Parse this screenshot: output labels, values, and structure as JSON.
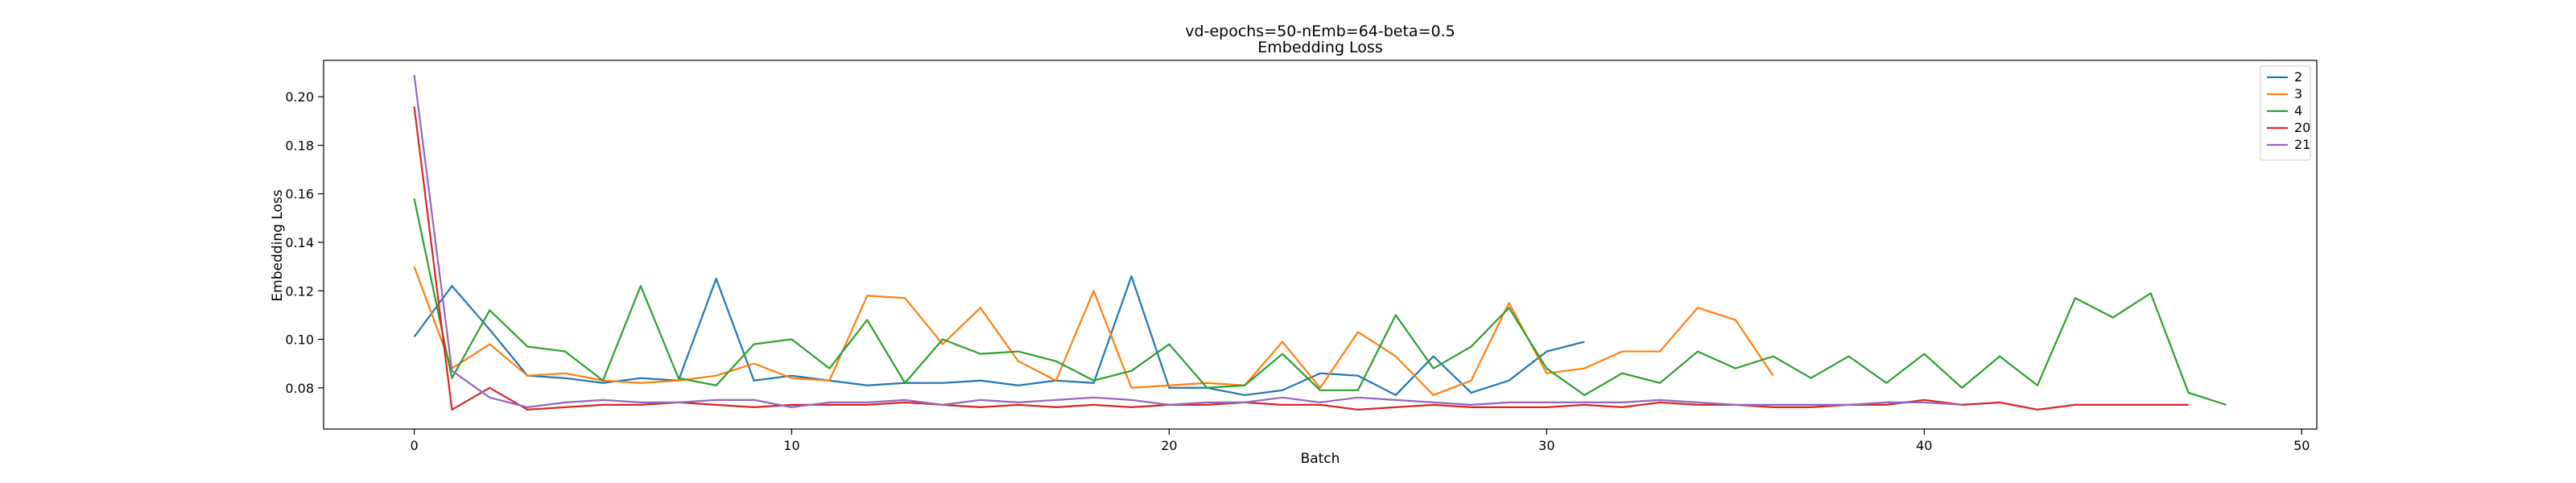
{
  "chart_data": {
    "type": "line",
    "title": "vd-epochs=50-nEmb=64-beta=0.5",
    "subtitle": "Embedding Loss",
    "xlabel": "Batch",
    "ylabel": "Embedding Loss",
    "xlim": [
      -2.4,
      50.4
    ],
    "ylim": [
      0.063,
      0.215
    ],
    "xticks": [
      0,
      10,
      20,
      30,
      40,
      50
    ],
    "yticks": [
      0.08,
      0.1,
      0.12,
      0.14,
      0.16,
      0.18,
      0.2
    ],
    "ytick_labels": [
      "0.08",
      "0.10",
      "0.12",
      "0.14",
      "0.16",
      "0.18",
      "0.20"
    ],
    "grid": false,
    "legend_position": "top-right",
    "series": [
      {
        "name": "2",
        "color": "#1f77b4",
        "x": [
          0,
          1,
          2,
          3,
          4,
          5,
          6,
          7,
          8,
          9,
          10,
          11,
          12,
          13,
          14,
          15,
          16,
          17,
          18,
          19,
          20,
          21,
          22,
          23,
          24,
          25,
          26,
          27,
          28,
          29,
          30,
          31
        ],
        "y": [
          0.101,
          0.122,
          0.104,
          0.085,
          0.084,
          0.082,
          0.084,
          0.083,
          0.125,
          0.083,
          0.085,
          0.083,
          0.081,
          0.082,
          0.082,
          0.083,
          0.081,
          0.083,
          0.082,
          0.126,
          0.08,
          0.08,
          0.077,
          0.079,
          0.086,
          0.085,
          0.077,
          0.093,
          0.078,
          0.083,
          0.095,
          0.099
        ]
      },
      {
        "name": "3",
        "color": "#ff7f0e",
        "x": [
          0,
          1,
          2,
          3,
          4,
          5,
          6,
          7,
          8,
          9,
          10,
          11,
          12,
          13,
          14,
          15,
          16,
          17,
          18,
          19,
          20,
          21,
          22,
          23,
          24,
          25,
          26,
          27,
          28,
          29,
          30,
          31,
          32,
          33,
          34,
          35,
          36
        ],
        "y": [
          0.13,
          0.088,
          0.098,
          0.085,
          0.086,
          0.083,
          0.082,
          0.083,
          0.085,
          0.09,
          0.084,
          0.083,
          0.118,
          0.117,
          0.098,
          0.113,
          0.091,
          0.083,
          0.12,
          0.08,
          0.081,
          0.082,
          0.081,
          0.099,
          0.08,
          0.103,
          0.093,
          0.077,
          0.083,
          0.115,
          0.086,
          0.088,
          0.095,
          0.095,
          0.113,
          0.108,
          0.085
        ]
      },
      {
        "name": "4",
        "color": "#2ca02c",
        "x": [
          0,
          1,
          2,
          3,
          4,
          5,
          6,
          7,
          8,
          9,
          10,
          11,
          12,
          13,
          14,
          15,
          16,
          17,
          18,
          19,
          20,
          21,
          22,
          23,
          24,
          25,
          26,
          27,
          28,
          29,
          30,
          31,
          32,
          33,
          34,
          35,
          36,
          37,
          38,
          39,
          40,
          41,
          42,
          43,
          44,
          45,
          46,
          47,
          48
        ],
        "y": [
          0.158,
          0.084,
          0.112,
          0.097,
          0.095,
          0.083,
          0.122,
          0.084,
          0.081,
          0.098,
          0.1,
          0.088,
          0.108,
          0.082,
          0.1,
          0.094,
          0.095,
          0.091,
          0.083,
          0.087,
          0.098,
          0.08,
          0.081,
          0.094,
          0.079,
          0.079,
          0.11,
          0.088,
          0.097,
          0.113,
          0.088,
          0.077,
          0.086,
          0.082,
          0.095,
          0.088,
          0.093,
          0.084,
          0.093,
          0.082,
          0.094,
          0.08,
          0.093,
          0.081,
          0.117,
          0.109,
          0.119,
          0.078,
          0.073
        ]
      },
      {
        "name": "20",
        "color": "#d62728",
        "x": [
          0,
          1,
          2,
          3,
          4,
          5,
          6,
          7,
          8,
          9,
          10,
          11,
          12,
          13,
          14,
          15,
          16,
          17,
          18,
          19,
          20,
          21,
          22,
          23,
          24,
          25,
          26,
          27,
          28,
          29,
          30,
          31,
          32,
          33,
          34,
          35,
          36,
          37,
          38,
          39,
          40,
          41,
          42,
          43,
          44,
          45,
          46,
          47
        ],
        "y": [
          0.196,
          0.071,
          0.08,
          0.071,
          0.072,
          0.073,
          0.073,
          0.074,
          0.073,
          0.072,
          0.073,
          0.073,
          0.073,
          0.074,
          0.073,
          0.072,
          0.073,
          0.072,
          0.073,
          0.072,
          0.073,
          0.073,
          0.074,
          0.073,
          0.073,
          0.071,
          0.072,
          0.073,
          0.072,
          0.072,
          0.072,
          0.073,
          0.072,
          0.074,
          0.073,
          0.073,
          0.072,
          0.072,
          0.073,
          0.073,
          0.075,
          0.073,
          0.074,
          0.071,
          0.073,
          0.073,
          0.073,
          0.073
        ]
      },
      {
        "name": "21",
        "color": "#9467bd",
        "x": [
          0,
          1,
          2,
          3,
          4,
          5,
          6,
          7,
          8,
          9,
          10,
          11,
          12,
          13,
          14,
          15,
          16,
          17,
          18,
          19,
          20,
          21,
          22,
          23,
          24,
          25,
          26,
          27,
          28,
          29,
          30,
          31,
          32,
          33,
          34,
          35,
          36,
          37,
          38,
          39,
          40,
          41
        ],
        "y": [
          0.209,
          0.087,
          0.076,
          0.072,
          0.074,
          0.075,
          0.074,
          0.074,
          0.075,
          0.075,
          0.072,
          0.074,
          0.074,
          0.075,
          0.073,
          0.075,
          0.074,
          0.075,
          0.076,
          0.075,
          0.073,
          0.074,
          0.074,
          0.076,
          0.074,
          0.076,
          0.075,
          0.074,
          0.073,
          0.074,
          0.074,
          0.074,
          0.074,
          0.075,
          0.074,
          0.073,
          0.073,
          0.073,
          0.073,
          0.074,
          0.074,
          0.073
        ]
      }
    ]
  }
}
